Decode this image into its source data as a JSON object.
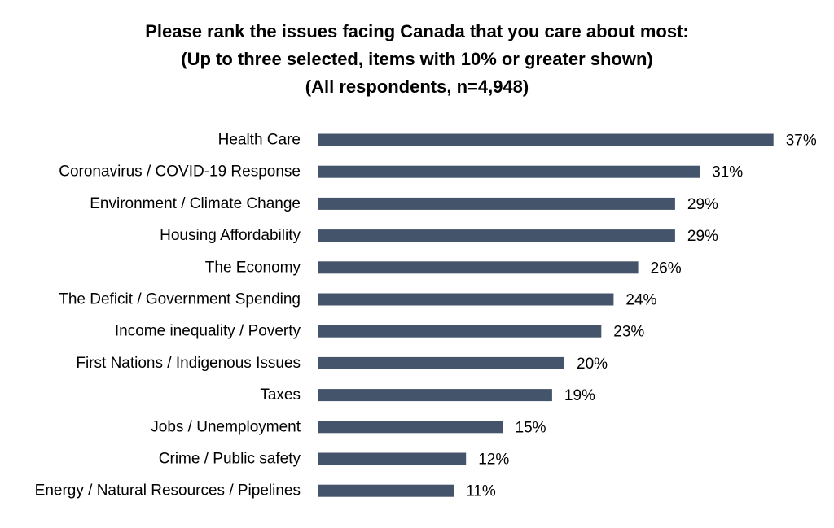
{
  "title": {
    "line1": "Please rank the issues facing Canada that you care about most:",
    "line2": "(Up to three selected, items with 10% or greater shown)",
    "line3": "(All respondents, n=4,948)"
  },
  "colors": {
    "bar": "#44546a",
    "axis": "#bfbfbf",
    "text": "#000000"
  },
  "chart_data": {
    "type": "bar",
    "orientation": "horizontal",
    "title": "Please rank the issues facing Canada that you care about most: (Up to three selected, items with 10% or greater shown) (All respondents, n=4,948)",
    "categories": [
      "Health Care",
      "Coronavirus / COVID-19 Response",
      "Environment / Climate Change",
      "Housing Affordability",
      "The Economy",
      "The Deficit / Government Spending",
      "Income inequality / Poverty",
      "First Nations / Indigenous Issues",
      "Taxes",
      "Jobs / Unemployment",
      "Crime / Public safety",
      "Energy / Natural Resources / Pipelines"
    ],
    "values": [
      37,
      31,
      29,
      29,
      26,
      24,
      23,
      20,
      19,
      15,
      12,
      11
    ],
    "value_labels": [
      "37%",
      "31%",
      "29%",
      "29%",
      "26%",
      "24%",
      "23%",
      "20%",
      "19%",
      "15%",
      "12%",
      "11%"
    ],
    "unit": "%",
    "xlim": [
      0,
      37
    ],
    "grid": false,
    "legend": "none"
  }
}
